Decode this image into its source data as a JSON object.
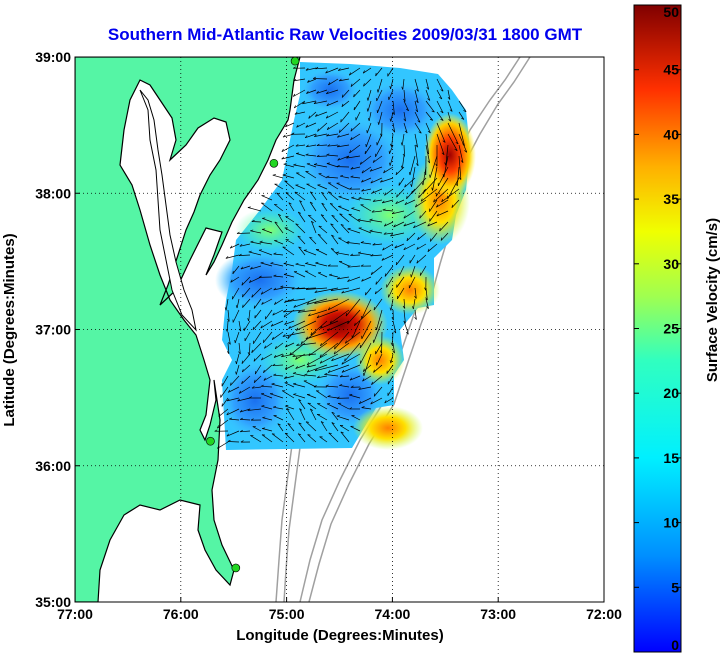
{
  "chart_data": {
    "type": "heatmap",
    "title": "Southern Mid-Atlantic Raw Velocities 2009/03/31 1800 GMT",
    "xlabel": "Longitude (Degrees:Minutes)",
    "ylabel": "Latitude (Degrees:Minutes)",
    "x_range": [
      -77,
      -72
    ],
    "y_range": [
      35,
      39
    ],
    "x_ticks": [
      {
        "value": -77,
        "label": "77:00"
      },
      {
        "value": -76,
        "label": "76:00"
      },
      {
        "value": -75,
        "label": "75:00"
      },
      {
        "value": -74,
        "label": "74:00"
      },
      {
        "value": -73,
        "label": "73:00"
      },
      {
        "value": -72,
        "label": "72:00"
      }
    ],
    "y_ticks": [
      {
        "value": 35,
        "label": "35:00"
      },
      {
        "value": 36,
        "label": "36:00"
      },
      {
        "value": 37,
        "label": "37:00"
      },
      {
        "value": 38,
        "label": "38:00"
      },
      {
        "value": 39,
        "label": "39:00"
      }
    ],
    "grid": true,
    "colorbar": {
      "label": "Surface Velocity (cm/s)",
      "range": [
        0,
        50
      ],
      "ticks": [
        0,
        5,
        10,
        15,
        20,
        25,
        30,
        35,
        40,
        45,
        50
      ],
      "colormap": "jet",
      "placement": "right"
    },
    "velocity_regions": [
      {
        "lon": -74.4,
        "lat": 37.0,
        "speed": 48
      },
      {
        "lon": -73.45,
        "lat": 38.3,
        "speed": 45
      },
      {
        "lon": -73.9,
        "lat": 36.3,
        "speed": 30
      },
      {
        "lon": -74.8,
        "lat": 37.6,
        "speed": 12
      },
      {
        "lon": -74.5,
        "lat": 38.2,
        "speed": 6
      },
      {
        "lon": -74.5,
        "lat": 36.5,
        "speed": 6
      },
      {
        "lon": -75.2,
        "lat": 37.4,
        "speed": 5
      }
    ],
    "station_markers": [
      {
        "lon": -74.92,
        "lat": 38.97
      },
      {
        "lon": -75.12,
        "lat": 38.22
      },
      {
        "lon": -75.72,
        "lat": 36.18
      },
      {
        "lon": -75.48,
        "lat": 35.25
      }
    ],
    "colors": {
      "land": "#55f5a5",
      "water": "#ffffff",
      "coastline": "#000000",
      "bathymetry": "#a0a0a0",
      "station": "#22d622",
      "title": "#0000ee"
    }
  }
}
